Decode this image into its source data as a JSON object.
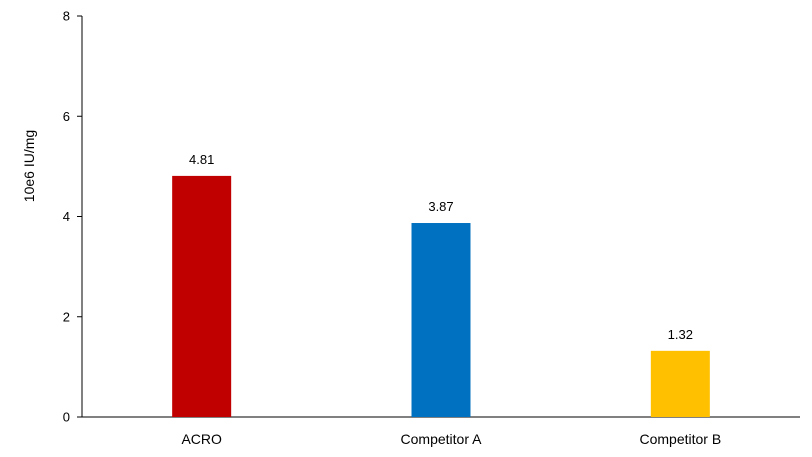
{
  "chart_data": {
    "type": "bar",
    "title": "",
    "xlabel": "",
    "ylabel": "10e6 IU/mg",
    "ylim": [
      0,
      8
    ],
    "yticks": [
      0,
      2,
      4,
      6,
      8
    ],
    "grid": false,
    "categories": [
      "ACRO",
      "Competitor A",
      "Competitor B"
    ],
    "values": [
      4.81,
      3.87,
      1.32
    ],
    "data_labels": [
      "4.81",
      "3.87",
      "1.32"
    ],
    "colors": [
      "#c00000",
      "#0070c0",
      "#ffc000"
    ]
  }
}
